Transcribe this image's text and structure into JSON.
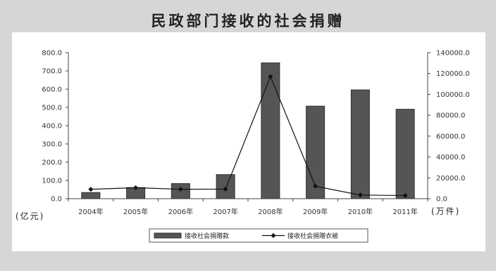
{
  "title": "民政部门接收的社会捐赠",
  "chart_data": {
    "type": "bar",
    "title": "民政部门接收的社会捐赠",
    "categories": [
      "2004年",
      "2005年",
      "2006年",
      "2007年",
      "2008年",
      "2009年",
      "2010年",
      "2011年"
    ],
    "series": [
      {
        "name": "接收社会捐赠款",
        "type": "bar",
        "axis": "left",
        "values": [
          34,
          61,
          83,
          132,
          744,
          507,
          596,
          490
        ]
      },
      {
        "name": "接收社会捐赠衣被",
        "type": "line",
        "axis": "right",
        "values": [
          9000,
          10500,
          9000,
          9200,
          117000,
          12000,
          3500,
          3000
        ]
      }
    ],
    "y_left": {
      "label": "(亿元)",
      "ylim": [
        0,
        800
      ],
      "ticks": [
        "800.0",
        "700.0",
        "600.0",
        "500.0",
        "400.0",
        "300.0",
        "200.0",
        "100.0",
        "0.0"
      ]
    },
    "y_right": {
      "label": "(万件)",
      "ylim": [
        0,
        140000
      ],
      "ticks": [
        "140000.0",
        "120000.0",
        "100000.0",
        "80000.0",
        "60000.0",
        "40000.0",
        "20000.0",
        "0.0"
      ]
    },
    "legend_position": "bottom",
    "grid": false
  },
  "colors": {
    "bar_fill": "#555555",
    "bar_edge": "#333333",
    "line": "#111111",
    "background_outer": "#d6d6d6",
    "background_panel": "#ffffff"
  }
}
